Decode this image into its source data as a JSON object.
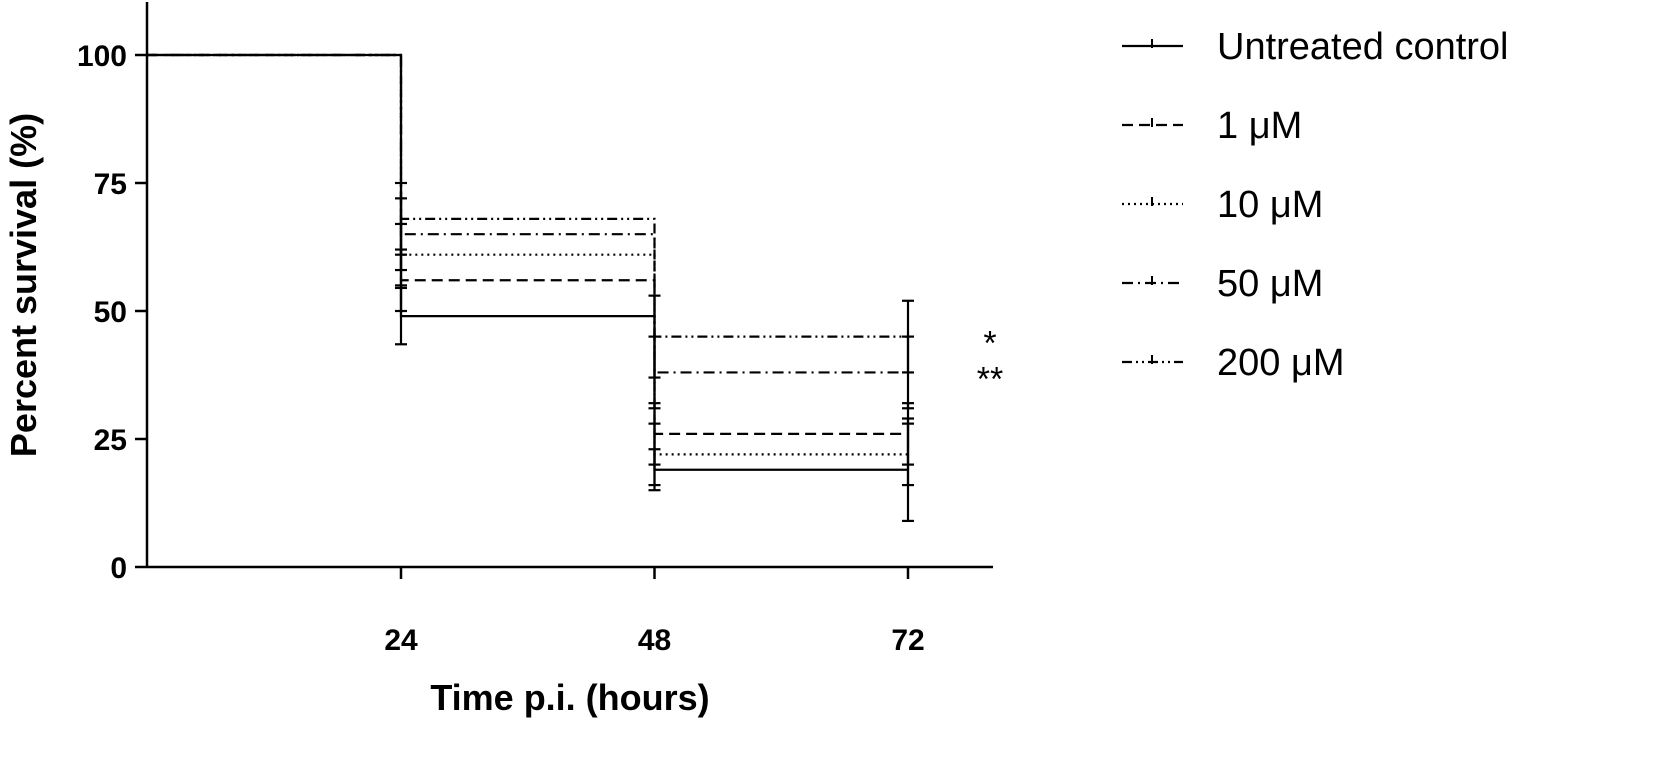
{
  "chart_data": {
    "type": "line",
    "subtype": "kaplan-meier step",
    "xlabel": "Time p.i. (hours)",
    "ylabel": "Percent survival (%)",
    "x_ticks": [
      24,
      48,
      72
    ],
    "y_ticks": [
      0,
      25,
      50,
      75,
      100
    ],
    "xlim": [
      0,
      80
    ],
    "ylim": [
      0,
      100
    ],
    "grid": false,
    "legend_position": "right",
    "series": [
      {
        "name": "Untreated control",
        "dash": "solid",
        "x": [
          0,
          24,
          48,
          72
        ],
        "y": [
          100,
          49,
          19,
          19
        ],
        "error": [
          null,
          5.5,
          4,
          10
        ]
      },
      {
        "name": "1 μM",
        "dash": "dashed",
        "x": [
          0,
          24,
          48,
          72
        ],
        "y": [
          100,
          56,
          26,
          26
        ],
        "error": [
          null,
          6,
          6,
          6
        ]
      },
      {
        "name": "10 μM",
        "dash": "dotted",
        "x": [
          0,
          24,
          48,
          72
        ],
        "y": [
          100,
          61,
          22,
          22
        ],
        "error": [
          null,
          6,
          6,
          6
        ]
      },
      {
        "name": "50 μM",
        "dash": "dash-dot",
        "x": [
          0,
          24,
          48,
          72
        ],
        "y": [
          100,
          65,
          38,
          38
        ],
        "error": [
          null,
          7,
          7,
          7
        ]
      },
      {
        "name": "200 μM",
        "dash": "dash-dot-dot",
        "x": [
          0,
          24,
          48,
          72
        ],
        "y": [
          100,
          68,
          45,
          45
        ],
        "error": [
          null,
          7,
          8,
          7
        ]
      }
    ],
    "annotations": [
      {
        "text": "*",
        "series": "200 μM"
      },
      {
        "text": "**",
        "series": "50 μM"
      }
    ]
  }
}
